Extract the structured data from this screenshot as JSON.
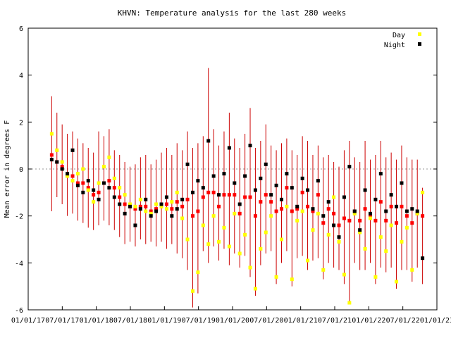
{
  "chart_data": {
    "type": "scatter",
    "title": "KHVN: Temperature analysis for the last 280 weeks",
    "xlabel": "",
    "ylabel": "Mean error in degrees F",
    "ylim": [
      -6,
      6
    ],
    "yticks": [
      -6,
      -4,
      -2,
      0,
      2,
      4,
      6
    ],
    "xlim": [
      "2017-01-01",
      "2023-01-01"
    ],
    "xticks": [
      "01/01/17",
      "07/01/17",
      "01/01/18",
      "07/01/18",
      "01/01/19",
      "07/01/19",
      "01/01/20",
      "07/01/20",
      "01/01/21",
      "07/01/21",
      "01/01/22",
      "07/01/22",
      "01/01/23"
    ],
    "grid": false,
    "zero_line": true,
    "legend": {
      "position": "top-right"
    },
    "colors": {
      "day": "#ffff00",
      "night": "#000000",
      "mean": "#ff0000",
      "range": "#cc0000"
    },
    "series": [
      {
        "name": "Day",
        "x": [
          "2017-05-07",
          "2017-06-04",
          "2017-07-02",
          "2017-07-30",
          "2017-08-27",
          "2017-09-24",
          "2017-10-22",
          "2017-11-19",
          "2017-12-17",
          "2018-01-14",
          "2018-02-11",
          "2018-03-11",
          "2018-04-08",
          "2018-05-06",
          "2018-06-03",
          "2018-07-01",
          "2018-07-29",
          "2018-08-26",
          "2018-09-23",
          "2018-10-21",
          "2018-11-18",
          "2018-12-16",
          "2019-01-13",
          "2019-02-10",
          "2019-03-10",
          "2019-04-07",
          "2019-05-05",
          "2019-06-02",
          "2019-06-30",
          "2019-07-28",
          "2019-08-25",
          "2019-09-22",
          "2019-10-20",
          "2019-11-17",
          "2019-12-15",
          "2020-01-12",
          "2020-02-09",
          "2020-03-08",
          "2020-04-05",
          "2020-05-03",
          "2020-05-31",
          "2020-06-28",
          "2020-07-26",
          "2020-08-23",
          "2020-09-20",
          "2020-10-18",
          "2020-11-15",
          "2020-12-13",
          "2021-01-10",
          "2021-02-07",
          "2021-03-07",
          "2021-04-04",
          "2021-05-02",
          "2021-05-30",
          "2021-06-27",
          "2021-07-25",
          "2021-08-22",
          "2021-09-19",
          "2021-10-17",
          "2021-11-14",
          "2021-12-12",
          "2022-01-09",
          "2022-02-06",
          "2022-03-06",
          "2022-04-03",
          "2022-05-01",
          "2022-05-29",
          "2022-06-26",
          "2022-07-24",
          "2022-08-21",
          "2022-09-18",
          "2022-10-16"
        ],
        "y": [
          1.5,
          0.8,
          0.3,
          -0.3,
          -0.5,
          -0.2,
          0.0,
          -0.9,
          -1.4,
          -0.6,
          0.1,
          0.5,
          -0.4,
          -0.8,
          -1.1,
          -1.5,
          -1.6,
          -1.3,
          -1.8,
          -1.9,
          -1.5,
          -1.6,
          -1.7,
          -1.4,
          -1.0,
          -2.1,
          -3.0,
          -5.2,
          -4.4,
          -2.4,
          -3.2,
          -2.0,
          -3.1,
          -2.5,
          -3.3,
          -1.9,
          -3.6,
          -2.8,
          -4.2,
          -5.1,
          -3.4,
          -2.7,
          -2.0,
          -4.6,
          -3.0,
          -1.6,
          -4.7,
          -2.2,
          -1.8,
          -3.9,
          -2.6,
          -1.9,
          -4.3,
          -2.8,
          -1.2,
          -3.1,
          -4.5,
          -5.7,
          -1.9,
          -2.7,
          -3.4,
          -2.1,
          -4.6,
          -2.9,
          -3.5,
          -2.4,
          -4.8,
          -3.1,
          -2.5,
          -4.3,
          -1.9,
          -1.0
        ]
      },
      {
        "name": "Night",
        "x": [
          "2017-05-07",
          "2017-06-04",
          "2017-07-02",
          "2017-07-30",
          "2017-08-27",
          "2017-09-24",
          "2017-10-22",
          "2017-11-19",
          "2017-12-17",
          "2018-01-14",
          "2018-02-11",
          "2018-03-11",
          "2018-04-08",
          "2018-05-06",
          "2018-06-03",
          "2018-07-01",
          "2018-07-29",
          "2018-08-26",
          "2018-09-23",
          "2018-10-21",
          "2018-11-18",
          "2018-12-16",
          "2019-01-13",
          "2019-02-10",
          "2019-03-10",
          "2019-04-07",
          "2019-05-05",
          "2019-06-02",
          "2019-06-30",
          "2019-07-28",
          "2019-08-25",
          "2019-09-22",
          "2019-10-20",
          "2019-11-17",
          "2019-12-15",
          "2020-01-12",
          "2020-02-09",
          "2020-03-08",
          "2020-04-05",
          "2020-05-03",
          "2020-05-31",
          "2020-06-28",
          "2020-07-26",
          "2020-08-23",
          "2020-09-20",
          "2020-10-18",
          "2020-11-15",
          "2020-12-13",
          "2021-01-10",
          "2021-02-07",
          "2021-03-07",
          "2021-04-04",
          "2021-05-02",
          "2021-05-30",
          "2021-06-27",
          "2021-07-25",
          "2021-08-22",
          "2021-09-19",
          "2021-10-17",
          "2021-11-14",
          "2021-12-12",
          "2022-01-09",
          "2022-02-06",
          "2022-03-06",
          "2022-04-03",
          "2022-05-01",
          "2022-05-29",
          "2022-06-26",
          "2022-07-24",
          "2022-08-21",
          "2022-09-18",
          "2022-10-16"
        ],
        "y": [
          0.4,
          0.3,
          0.0,
          -0.2,
          0.8,
          -0.7,
          -1.0,
          -0.5,
          -0.9,
          -1.3,
          -0.6,
          -0.8,
          -1.2,
          -1.5,
          -1.9,
          -1.6,
          -2.4,
          -1.7,
          -1.3,
          -2.0,
          -1.8,
          -1.5,
          -1.2,
          -2.0,
          -1.7,
          -1.3,
          0.2,
          -1.0,
          -0.5,
          -0.8,
          1.2,
          -0.3,
          -1.1,
          -0.2,
          0.9,
          -0.6,
          -1.5,
          -0.3,
          1.0,
          -0.9,
          -0.4,
          0.2,
          -1.1,
          -0.7,
          -1.3,
          -0.2,
          -0.8,
          -1.6,
          -0.4,
          -0.9,
          -1.7,
          -0.5,
          -2.0,
          -1.4,
          -2.4,
          -2.9,
          -1.2,
          0.1,
          -1.8,
          -2.6,
          -0.9,
          -1.9,
          -1.3,
          -0.2,
          -1.8,
          -1.1,
          -1.6,
          -0.6,
          -1.8,
          -1.7,
          -1.8,
          -3.8
        ]
      },
      {
        "name": "Mean",
        "x": [
          "2017-05-07",
          "2017-06-04",
          "2017-07-02",
          "2017-07-30",
          "2017-08-27",
          "2017-09-24",
          "2017-10-22",
          "2017-11-19",
          "2017-12-17",
          "2018-01-14",
          "2018-02-11",
          "2018-03-11",
          "2018-04-08",
          "2018-05-06",
          "2018-06-03",
          "2018-07-01",
          "2018-07-29",
          "2018-08-26",
          "2018-09-23",
          "2018-10-21",
          "2018-11-18",
          "2018-12-16",
          "2019-01-13",
          "2019-02-10",
          "2019-03-10",
          "2019-04-07",
          "2019-05-05",
          "2019-06-02",
          "2019-06-30",
          "2019-07-28",
          "2019-08-25",
          "2019-09-22",
          "2019-10-20",
          "2019-11-17",
          "2019-12-15",
          "2020-01-12",
          "2020-02-09",
          "2020-03-08",
          "2020-04-05",
          "2020-05-03",
          "2020-05-31",
          "2020-06-28",
          "2020-07-26",
          "2020-08-23",
          "2020-09-20",
          "2020-10-18",
          "2020-11-15",
          "2020-12-13",
          "2021-01-10",
          "2021-02-07",
          "2021-03-07",
          "2021-04-04",
          "2021-05-02",
          "2021-05-30",
          "2021-06-27",
          "2021-07-25",
          "2021-08-22",
          "2021-09-19",
          "2021-10-17",
          "2021-11-14",
          "2021-12-12",
          "2022-01-09",
          "2022-02-06",
          "2022-03-06",
          "2022-04-03",
          "2022-05-01",
          "2022-05-29",
          "2022-06-26",
          "2022-07-24",
          "2022-08-21",
          "2022-09-18",
          "2022-10-16"
        ],
        "y": [
          0.6,
          0.3,
          0.1,
          -0.3,
          -0.3,
          -0.6,
          -0.6,
          -0.8,
          -1.1,
          -1.0,
          -0.6,
          -0.5,
          -0.8,
          -1.2,
          -1.5,
          -1.6,
          -1.7,
          -1.6,
          -1.6,
          -1.8,
          -1.7,
          -1.6,
          -1.5,
          -1.7,
          -1.4,
          -1.6,
          -1.3,
          -2.0,
          -1.8,
          -1.2,
          -1.0,
          -1.0,
          -1.6,
          -1.1,
          -1.1,
          -1.1,
          -1.9,
          -1.2,
          -1.2,
          -2.0,
          -1.4,
          -1.1,
          -1.4,
          -1.8,
          -1.7,
          -0.8,
          -1.8,
          -1.7,
          -1.0,
          -1.6,
          -1.8,
          -1.1,
          -2.3,
          -1.7,
          -1.9,
          -2.4,
          -2.1,
          -2.2,
          -1.8,
          -2.2,
          -1.7,
          -2.0,
          -2.2,
          -1.4,
          -2.2,
          -1.6,
          -2.3,
          -1.6,
          -2.0,
          -2.3,
          -1.9,
          -2.0
        ]
      }
    ],
    "ranges": {
      "x": [
        "2017-05-07",
        "2017-06-04",
        "2017-07-02",
        "2017-07-30",
        "2017-08-27",
        "2017-09-24",
        "2017-10-22",
        "2017-11-19",
        "2017-12-17",
        "2018-01-14",
        "2018-02-11",
        "2018-03-11",
        "2018-04-08",
        "2018-05-06",
        "2018-06-03",
        "2018-07-01",
        "2018-07-29",
        "2018-08-26",
        "2018-09-23",
        "2018-10-21",
        "2018-11-18",
        "2018-12-16",
        "2019-01-13",
        "2019-02-10",
        "2019-03-10",
        "2019-04-07",
        "2019-05-05",
        "2019-06-02",
        "2019-06-30",
        "2019-07-28",
        "2019-08-25",
        "2019-09-22",
        "2019-10-20",
        "2019-11-17",
        "2019-12-15",
        "2020-01-12",
        "2020-02-09",
        "2020-03-08",
        "2020-04-05",
        "2020-05-03",
        "2020-05-31",
        "2020-06-28",
        "2020-07-26",
        "2020-08-23",
        "2020-09-20",
        "2020-10-18",
        "2020-11-15",
        "2020-12-13",
        "2021-01-10",
        "2021-02-07",
        "2021-03-07",
        "2021-04-04",
        "2021-05-02",
        "2021-05-30",
        "2021-06-27",
        "2021-07-25",
        "2021-08-22",
        "2021-09-19",
        "2021-10-17",
        "2021-11-14",
        "2021-12-12",
        "2022-01-09",
        "2022-02-06",
        "2022-03-06",
        "2022-04-03",
        "2022-05-01",
        "2022-05-29",
        "2022-06-26",
        "2022-07-24",
        "2022-08-21",
        "2022-09-18",
        "2022-10-16"
      ],
      "low": [
        -1.8,
        -1.2,
        -1.5,
        -2.0,
        -1.9,
        -2.2,
        -2.3,
        -2.5,
        -2.6,
        -2.4,
        -2.2,
        -2.4,
        -2.6,
        -2.9,
        -3.2,
        -3.1,
        -3.3,
        -3.0,
        -3.2,
        -3.1,
        -3.3,
        -3.1,
        -3.4,
        -3.2,
        -3.6,
        -3.8,
        -4.3,
        -5.9,
        -5.3,
        -3.5,
        -4.0,
        -3.3,
        -3.9,
        -3.4,
        -4.1,
        -3.6,
        -4.2,
        -3.7,
        -4.6,
        -5.4,
        -4.1,
        -3.6,
        -3.5,
        -4.9,
        -4.0,
        -3.5,
        -5.0,
        -3.8,
        -3.7,
        -4.3,
        -3.9,
        -3.8,
        -4.7,
        -4.0,
        -4.2,
        -4.3,
        -4.9,
        -5.7,
        -4.0,
        -4.3,
        -4.3,
        -4.0,
        -4.9,
        -4.2,
        -4.4,
        -4.2,
        -5.1,
        -4.3,
        -4.3,
        -4.8,
        -4.2,
        -4.9
      ],
      "high": [
        3.1,
        2.4,
        1.9,
        1.5,
        1.6,
        1.3,
        1.1,
        0.9,
        0.7,
        1.6,
        1.4,
        1.7,
        0.8,
        0.6,
        0.3,
        0.1,
        0.2,
        0.5,
        0.6,
        0.2,
        0.4,
        0.7,
        0.9,
        0.6,
        1.1,
        0.8,
        1.6,
        0.9,
        1.1,
        1.4,
        4.3,
        1.7,
        1.0,
        1.6,
        2.4,
        1.3,
        0.9,
        1.5,
        2.6,
        0.9,
        1.2,
        1.9,
        1.0,
        0.8,
        1.1,
        1.3,
        0.8,
        0.6,
        1.4,
        1.2,
        0.6,
        1.0,
        0.5,
        0.6,
        0.3,
        0.1,
        0.8,
        1.2,
        0.5,
        0.3,
        1.2,
        0.4,
        0.6,
        1.2,
        0.5,
        0.7,
        0.4,
        1.0,
        0.5,
        0.4,
        0.4,
        -0.8
      ]
    }
  }
}
